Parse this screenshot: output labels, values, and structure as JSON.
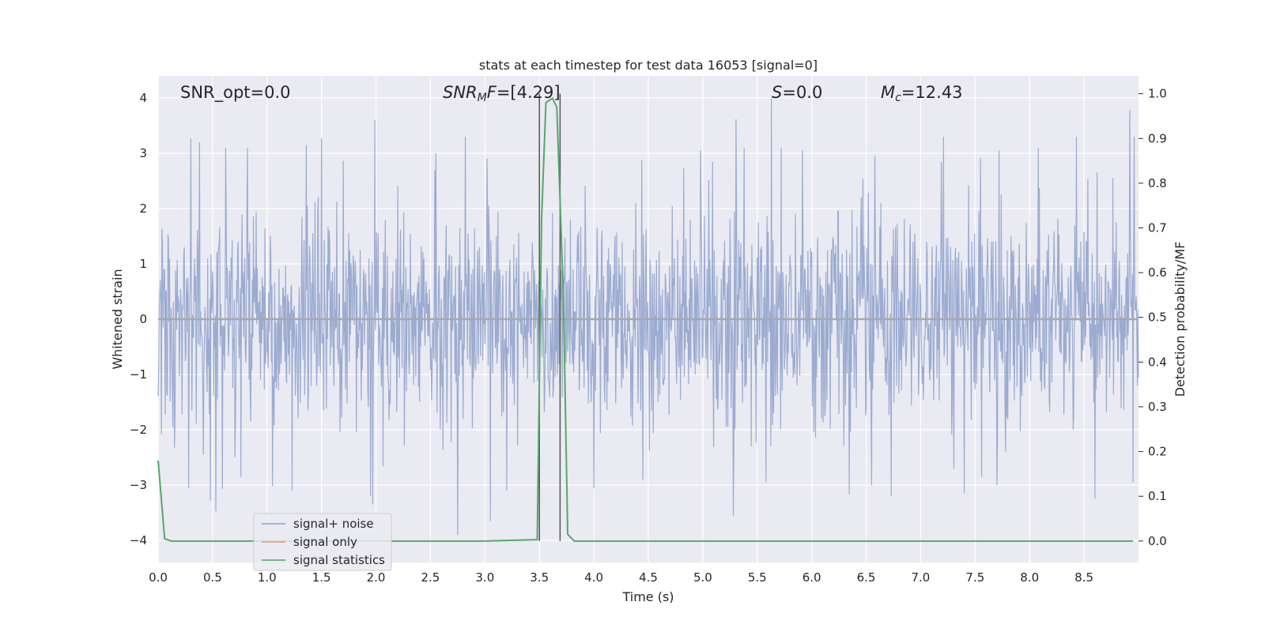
{
  "chart_data": {
    "type": "line",
    "title": "stats at each timestep for test data 16053 [signal=0]",
    "xlabel": "Time (s)",
    "ylabel": "Whitened strain",
    "y2label": "Detection probability/MF",
    "xlim": [
      0,
      9.0
    ],
    "ylim": [
      -4.4,
      4.4
    ],
    "y2lim": [
      -0.048,
      1.04
    ],
    "xticks": [
      "0.0",
      "0.5",
      "1.0",
      "1.5",
      "2.0",
      "2.5",
      "3.0",
      "3.5",
      "4.0",
      "4.5",
      "5.0",
      "5.5",
      "6.0",
      "6.5",
      "7.0",
      "7.5",
      "8.0",
      "8.5"
    ],
    "yticks": [
      "4",
      "3",
      "2",
      "1",
      "0",
      "−1",
      "−2",
      "−3",
      "−4"
    ],
    "y2ticks": [
      "1.0",
      "0.9",
      "0.8",
      "0.7",
      "0.6",
      "0.5",
      "0.4",
      "0.3",
      "0.2",
      "0.1",
      "0.0"
    ],
    "grid": true,
    "legend_placement": "lower-left",
    "annotations": {
      "snr_opt": "SNR_opt=0.0",
      "snr_mf_main": "SNR",
      "snr_mf_sub": "M",
      "snr_mf_mid": "F",
      "snr_mf_rest": "=[4.29]",
      "s_main": "S",
      "s_rest": "=0.0",
      "mc_main": "M",
      "mc_sub": "c",
      "mc_rest": "=12.43"
    },
    "vlines": [
      3.5,
      3.69
    ],
    "series": [
      {
        "name": "signal+ noise",
        "color": "#8da0cb",
        "axis": "left",
        "sample_rate": 200,
        "seed": 16053,
        "spikes": [
          [
            0.3,
            3.27
          ],
          [
            0.38,
            3.2
          ],
          [
            0.62,
            3.1
          ],
          [
            0.82,
            3.1
          ],
          [
            1.36,
            3.15
          ],
          [
            1.5,
            3.27
          ],
          [
            1.99,
            3.6
          ],
          [
            2.55,
            3.0
          ],
          [
            2.82,
            3.3
          ],
          [
            3.02,
            2.9
          ],
          [
            4.98,
            3.05
          ],
          [
            5.38,
            3.1
          ],
          [
            5.63,
            4.0
          ],
          [
            5.72,
            3.1
          ],
          [
            6.58,
            2.95
          ],
          [
            7.21,
            3.3
          ],
          [
            7.72,
            3.05
          ],
          [
            8.08,
            3.1
          ],
          [
            8.43,
            3.3
          ],
          [
            8.92,
            3.78
          ],
          [
            8.96,
            3.3
          ],
          [
            0.28,
            -3.05
          ],
          [
            0.48,
            -3.28
          ],
          [
            0.59,
            -3.07
          ],
          [
            1.05,
            -3.02
          ],
          [
            1.23,
            -3.1
          ],
          [
            1.95,
            -3.2
          ],
          [
            1.97,
            -3.35
          ],
          [
            2.75,
            -3.9
          ],
          [
            3.05,
            -3.65
          ],
          [
            3.2,
            -3.1
          ],
          [
            4.0,
            -3.05
          ],
          [
            4.45,
            -2.9
          ],
          [
            5.28,
            -3.55
          ],
          [
            5.58,
            -2.95
          ],
          [
            6.55,
            -3.0
          ],
          [
            6.73,
            -3.2
          ],
          [
            7.4,
            -3.15
          ],
          [
            7.7,
            -3.0
          ],
          [
            8.6,
            -3.25
          ],
          [
            8.95,
            -2.95
          ]
        ]
      },
      {
        "name": "signal only",
        "color": "#e49a76",
        "axis": "left",
        "values": []
      },
      {
        "name": "signal statistics",
        "color": "#55a868",
        "axis": "right",
        "x": [
          0.0,
          0.06,
          0.12,
          0.5,
          1.0,
          1.5,
          2.0,
          2.5,
          3.0,
          3.48,
          3.52,
          3.56,
          3.62,
          3.66,
          3.72,
          3.76,
          3.82,
          4.0,
          5.0,
          6.0,
          7.0,
          8.0,
          8.95
        ],
        "values": [
          0.18,
          0.005,
          0.0,
          0.0,
          0.0,
          0.0,
          0.0,
          0.0,
          0.0,
          0.003,
          0.72,
          0.98,
          0.99,
          0.97,
          0.55,
          0.015,
          0.0,
          0.0,
          0.0,
          0.0,
          0.0,
          0.0,
          0.0
        ]
      }
    ]
  }
}
